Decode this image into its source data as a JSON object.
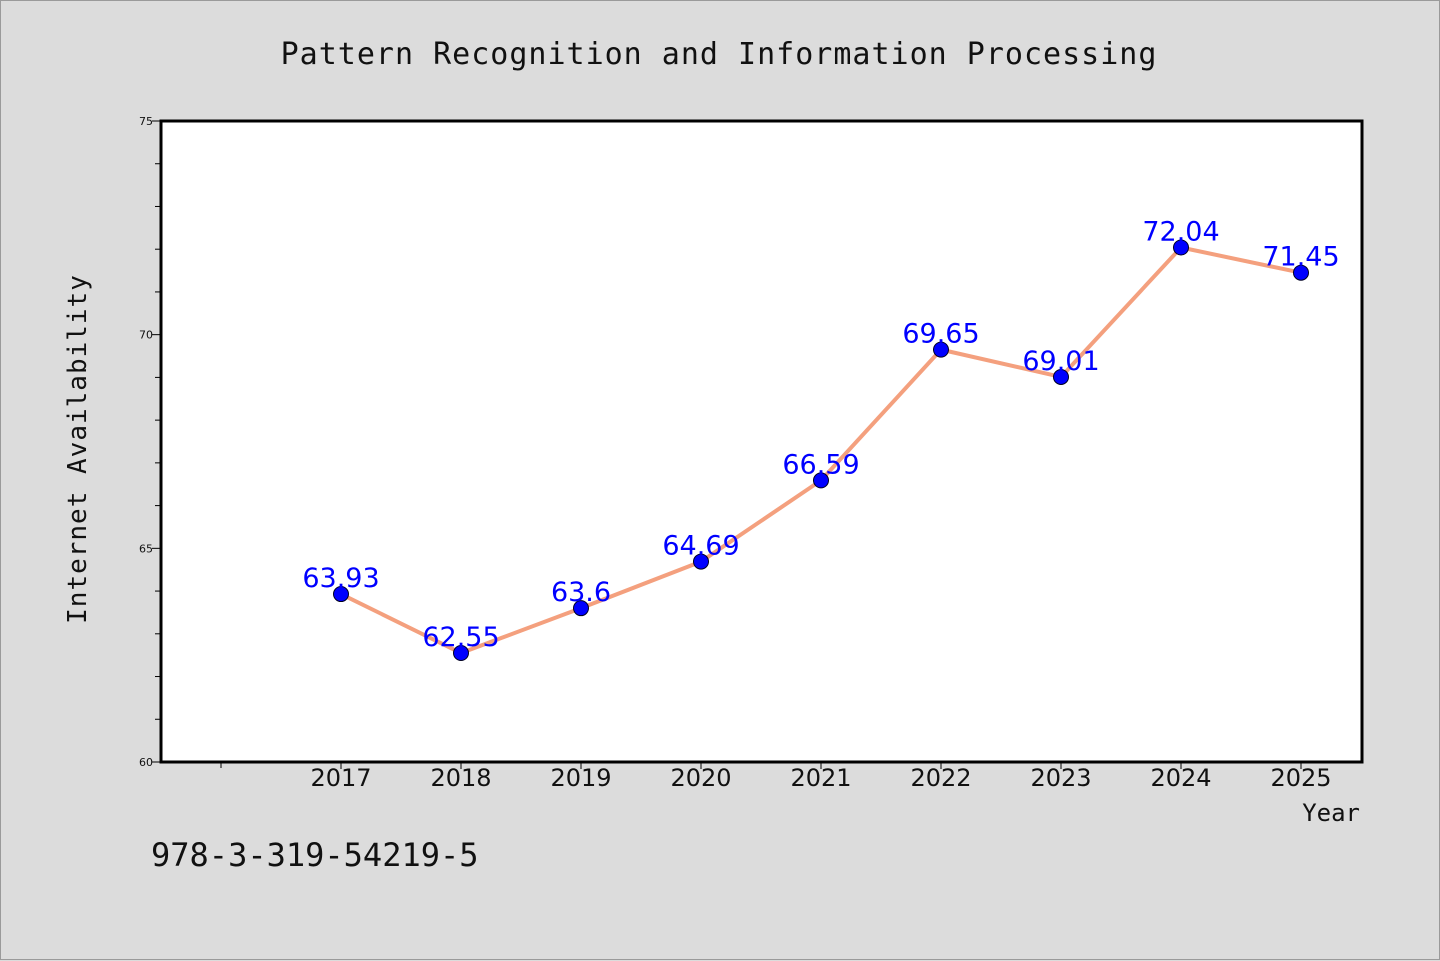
{
  "chart_data": {
    "type": "line",
    "title": "Pattern Recognition and Information Processing",
    "xlabel": "Year",
    "ylabel": "Internet Availability",
    "categories": [
      "2017",
      "2018",
      "2019",
      "2020",
      "2021",
      "2022",
      "2023",
      "2024",
      "2025"
    ],
    "values": [
      63.93,
      62.55,
      63.6,
      64.69,
      66.59,
      69.65,
      69.01,
      72.04,
      71.45
    ],
    "data_labels": [
      "63.93",
      "62.55",
      "63.6",
      "64.69",
      "66.59",
      "69.65",
      "69.01",
      "72.04",
      "71.45"
    ],
    "ylim": [
      60,
      75
    ],
    "yticks": [
      "60",
      "65",
      "70",
      "75"
    ],
    "grid": false,
    "line_color": "#f4a07e",
    "marker_color": "#0000ff",
    "label_color": "#0000ff"
  },
  "footer": {
    "isbn": "978-3-319-54219-5"
  }
}
